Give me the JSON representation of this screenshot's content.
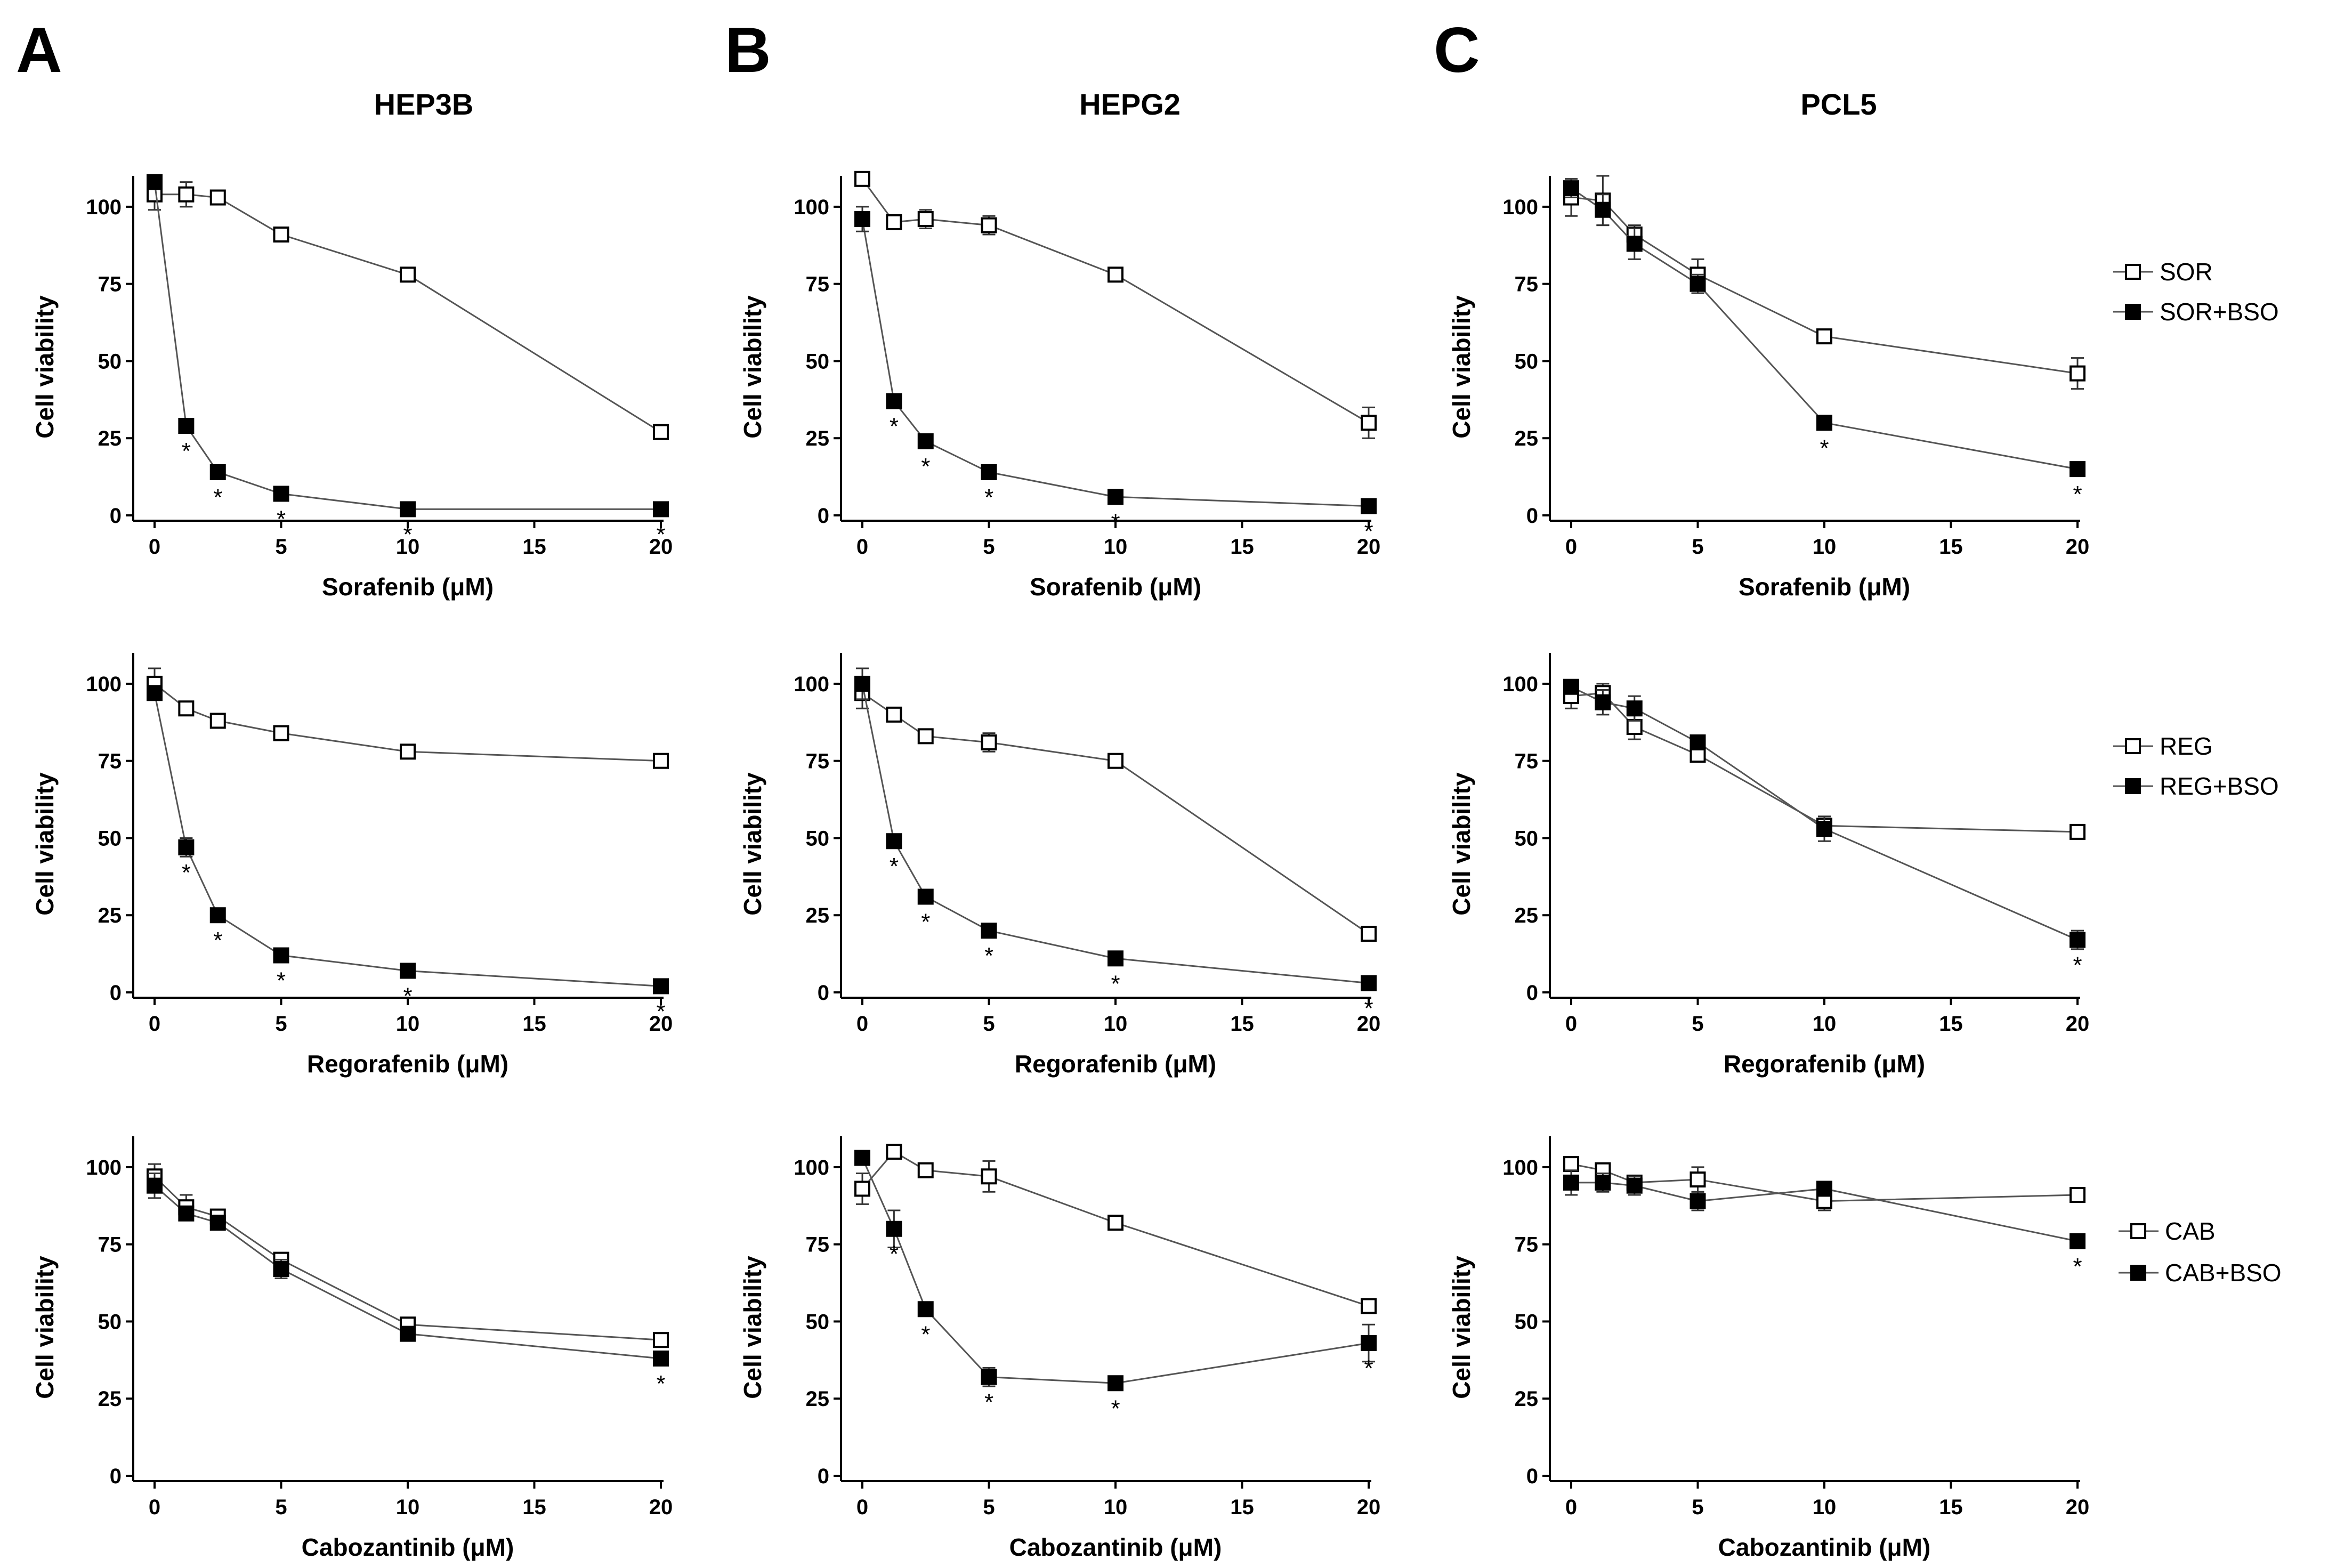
{
  "panel_letters": [
    "A",
    "B",
    "C"
  ],
  "column_titles": [
    "HEP3B",
    "HEPG2",
    "PCL5"
  ],
  "legends": [
    {
      "open": "SOR",
      "filled": "SOR+BSO"
    },
    {
      "open": "REG",
      "filled": "REG+BSO"
    },
    {
      "open": "CAB",
      "filled": "CAB+BSO"
    }
  ],
  "chart_data": [
    {
      "type": "line",
      "panel": "HEP3B-sorafenib",
      "xlabel": "Sorafenib (μM)",
      "ylabel": "Cell viability",
      "xlim": [
        0,
        20
      ],
      "ylim": [
        0,
        110
      ],
      "xticks": [
        0,
        5,
        10,
        15,
        20
      ],
      "yticks": [
        0,
        25,
        50,
        75,
        100
      ],
      "x": [
        0,
        1.25,
        2.5,
        5,
        10,
        20
      ],
      "series": [
        {
          "name": "SOR",
          "marker": "open-square",
          "values": [
            104,
            104,
            103,
            91,
            78,
            27
          ],
          "errors": [
            5,
            4,
            1,
            1,
            1,
            1
          ]
        },
        {
          "name": "SOR+BSO",
          "marker": "filled-square",
          "values": [
            108,
            29,
            14,
            7,
            2,
            2
          ],
          "errors": [
            1,
            1,
            1,
            1,
            1,
            1
          ],
          "stars": [
            false,
            true,
            true,
            true,
            true,
            true
          ]
        }
      ]
    },
    {
      "type": "line",
      "panel": "HEPG2-sorafenib",
      "xlabel": "Sorafenib (μM)",
      "ylabel": "Cell viability",
      "xlim": [
        0,
        20
      ],
      "ylim": [
        0,
        110
      ],
      "xticks": [
        0,
        5,
        10,
        15,
        20
      ],
      "yticks": [
        0,
        25,
        50,
        75,
        100
      ],
      "x": [
        0,
        1.25,
        2.5,
        5,
        10,
        20
      ],
      "series": [
        {
          "name": "SOR",
          "marker": "open-square",
          "values": [
            109,
            95,
            96,
            94,
            78,
            30
          ],
          "errors": [
            1,
            1,
            3,
            3,
            1,
            5
          ]
        },
        {
          "name": "SOR+BSO",
          "marker": "filled-square",
          "values": [
            96,
            37,
            24,
            14,
            6,
            3
          ],
          "errors": [
            4,
            1,
            2,
            1,
            1,
            1
          ],
          "stars": [
            false,
            true,
            true,
            true,
            true,
            true
          ]
        }
      ]
    },
    {
      "type": "line",
      "panel": "PCL5-sorafenib",
      "xlabel": "Sorafenib (μM)",
      "ylabel": "Cell viability",
      "xlim": [
        0,
        20
      ],
      "ylim": [
        0,
        110
      ],
      "xticks": [
        0,
        5,
        10,
        15,
        20
      ],
      "yticks": [
        0,
        25,
        50,
        75,
        100
      ],
      "x": [
        0,
        1.25,
        2.5,
        5,
        10,
        20
      ],
      "series": [
        {
          "name": "SOR",
          "marker": "open-square",
          "values": [
            103,
            102,
            91,
            78,
            58,
            46
          ],
          "errors": [
            6,
            8,
            3,
            5,
            1,
            5
          ]
        },
        {
          "name": "SOR+BSO",
          "marker": "filled-square",
          "values": [
            106,
            99,
            88,
            75,
            30,
            15
          ],
          "errors": [
            3,
            5,
            5,
            3,
            1,
            1
          ],
          "stars": [
            false,
            false,
            false,
            false,
            true,
            true
          ]
        }
      ]
    },
    {
      "type": "line",
      "panel": "HEP3B-regorafenib",
      "xlabel": "Regorafenib (μM)",
      "ylabel": "Cell viability",
      "xlim": [
        0,
        20
      ],
      "ylim": [
        0,
        110
      ],
      "xticks": [
        0,
        5,
        10,
        15,
        20
      ],
      "yticks": [
        0,
        25,
        50,
        75,
        100
      ],
      "x": [
        0,
        1.25,
        2.5,
        5,
        10,
        20
      ],
      "series": [
        {
          "name": "REG",
          "marker": "open-square",
          "values": [
            100,
            92,
            88,
            84,
            78,
            75
          ],
          "errors": [
            5,
            1,
            1,
            1,
            1,
            2
          ]
        },
        {
          "name": "REG+BSO",
          "marker": "filled-square",
          "values": [
            97,
            47,
            25,
            12,
            7,
            2
          ],
          "errors": [
            2,
            3,
            1,
            1,
            1,
            1
          ],
          "stars": [
            false,
            true,
            true,
            true,
            true,
            true
          ]
        }
      ]
    },
    {
      "type": "line",
      "panel": "HEPG2-regorafenib",
      "xlabel": "Regorafenib (μM)",
      "ylabel": "Cell viability",
      "xlim": [
        0,
        20
      ],
      "ylim": [
        0,
        110
      ],
      "xticks": [
        0,
        5,
        10,
        15,
        20
      ],
      "yticks": [
        0,
        25,
        50,
        75,
        100
      ],
      "x": [
        0,
        1.25,
        2.5,
        5,
        10,
        20
      ],
      "series": [
        {
          "name": "REG",
          "marker": "open-square",
          "values": [
            97,
            90,
            83,
            81,
            75,
            19
          ],
          "errors": [
            5,
            2,
            1,
            3,
            2,
            1
          ]
        },
        {
          "name": "REG+BSO",
          "marker": "filled-square",
          "values": [
            100,
            49,
            31,
            20,
            11,
            3
          ],
          "errors": [
            5,
            1,
            1,
            1,
            1,
            1
          ],
          "stars": [
            false,
            true,
            true,
            true,
            true,
            true
          ]
        }
      ]
    },
    {
      "type": "line",
      "panel": "PCL5-regorafenib",
      "xlabel": "Regorafenib (μM)",
      "ylabel": "Cell viability",
      "xlim": [
        0,
        20
      ],
      "ylim": [
        0,
        110
      ],
      "xticks": [
        0,
        5,
        10,
        15,
        20
      ],
      "yticks": [
        0,
        25,
        50,
        75,
        100
      ],
      "x": [
        0,
        1.25,
        2.5,
        5,
        10,
        20
      ],
      "series": [
        {
          "name": "REG",
          "marker": "open-square",
          "values": [
            96,
            97,
            86,
            77,
            54,
            52
          ],
          "errors": [
            4,
            3,
            4,
            1,
            3,
            1
          ]
        },
        {
          "name": "REG+BSO",
          "marker": "filled-square",
          "values": [
            99,
            94,
            92,
            81,
            53,
            17
          ],
          "errors": [
            2,
            4,
            4,
            1,
            4,
            3
          ],
          "stars": [
            false,
            false,
            false,
            false,
            false,
            true
          ]
        }
      ]
    },
    {
      "type": "line",
      "panel": "HEP3B-cabozantinib",
      "xlabel": "Cabozantinib (μM)",
      "ylabel": "Cell viability",
      "xlim": [
        0,
        20
      ],
      "ylim": [
        0,
        110
      ],
      "xticks": [
        0,
        5,
        10,
        15,
        20
      ],
      "yticks": [
        0,
        25,
        50,
        75,
        100
      ],
      "x": [
        0,
        1.25,
        2.5,
        5,
        10,
        20
      ],
      "series": [
        {
          "name": "CAB",
          "marker": "open-square",
          "values": [
            97,
            87,
            84,
            70,
            49,
            44
          ],
          "errors": [
            4,
            4,
            2,
            2,
            2,
            1
          ]
        },
        {
          "name": "CAB+BSO",
          "marker": "filled-square",
          "values": [
            94,
            85,
            82,
            67,
            46,
            38
          ],
          "errors": [
            4,
            2,
            2,
            3,
            1,
            2
          ],
          "stars": [
            false,
            false,
            false,
            false,
            false,
            true
          ]
        }
      ]
    },
    {
      "type": "line",
      "panel": "HEPG2-cabozantinib",
      "xlabel": "Cabozantinib (μM)",
      "ylabel": "Cell viability",
      "xlim": [
        0,
        20
      ],
      "ylim": [
        0,
        110
      ],
      "xticks": [
        0,
        5,
        10,
        15,
        20
      ],
      "yticks": [
        0,
        25,
        50,
        75,
        100
      ],
      "x": [
        0,
        1.25,
        2.5,
        5,
        10,
        20
      ],
      "series": [
        {
          "name": "CAB",
          "marker": "open-square",
          "values": [
            93,
            105,
            99,
            97,
            82,
            55
          ],
          "errors": [
            5,
            1,
            1,
            5,
            1,
            2
          ]
        },
        {
          "name": "CAB+BSO",
          "marker": "filled-square",
          "values": [
            103,
            80,
            54,
            32,
            30,
            43
          ],
          "errors": [
            1,
            6,
            1,
            3,
            2,
            6
          ],
          "stars": [
            false,
            true,
            true,
            true,
            true,
            true
          ]
        }
      ]
    },
    {
      "type": "line",
      "panel": "PCL5-cabozantinib",
      "xlabel": "Cabozantinib (μM)",
      "ylabel": "Cell viability",
      "xlim": [
        0,
        20
      ],
      "ylim": [
        0,
        110
      ],
      "xticks": [
        0,
        5,
        10,
        15,
        20
      ],
      "yticks": [
        0,
        25,
        50,
        75,
        100
      ],
      "x": [
        0,
        1.25,
        2.5,
        5,
        10,
        20
      ],
      "series": [
        {
          "name": "CAB",
          "marker": "open-square",
          "values": [
            101,
            99,
            95,
            96,
            89,
            91
          ],
          "errors": [
            1,
            2,
            2,
            4,
            3,
            1
          ]
        },
        {
          "name": "CAB+BSO",
          "marker": "filled-square",
          "values": [
            95,
            95,
            94,
            89,
            93,
            76
          ],
          "errors": [
            4,
            3,
            3,
            3,
            2,
            2
          ],
          "stars": [
            false,
            false,
            false,
            false,
            false,
            true
          ]
        }
      ]
    }
  ]
}
